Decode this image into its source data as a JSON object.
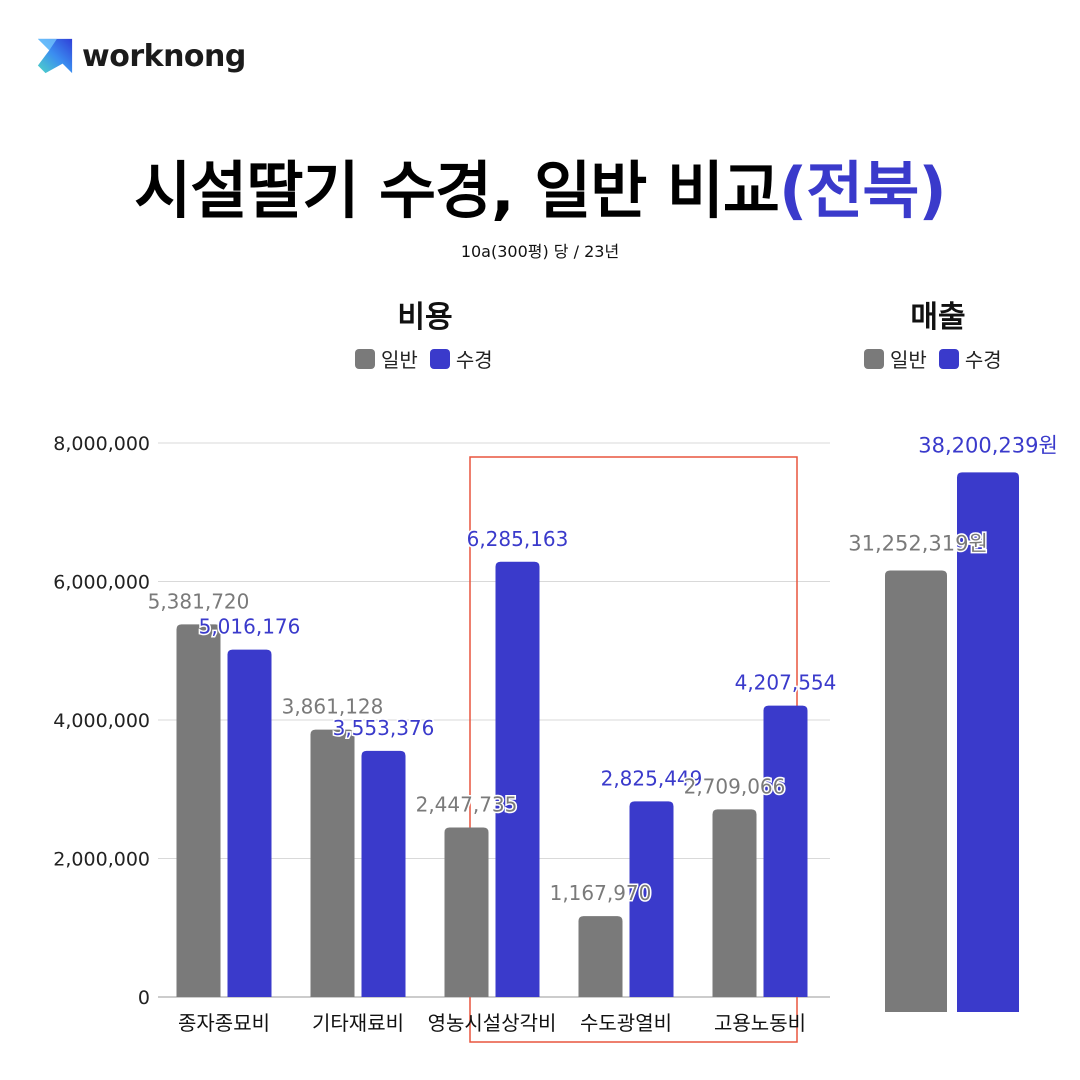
{
  "brand": {
    "name": "worknong",
    "icon": "arrow-logo-icon"
  },
  "header": {
    "title_main": "시설딸기 수경, 일반 비교",
    "title_accent": "(전북)",
    "subtitle": "10a(300평) 당 / 23년"
  },
  "legend": {
    "general": "일반",
    "hydroponic": "수경"
  },
  "colors": {
    "general": "#7a7a7a",
    "hydroponic": "#3a3acb",
    "highlight": "#e8553e",
    "grid": "#d9d9d9"
  },
  "chart_data": [
    {
      "type": "bar",
      "title": "비용",
      "categories": [
        "종자종묘비",
        "기타재료비",
        "영농시설상각비",
        "수도광열비",
        "고용노동비"
      ],
      "series": [
        {
          "name": "일반",
          "values": [
            5381720,
            3861128,
            2447735,
            1167970,
            2709066
          ],
          "labels": [
            "5,381,720",
            "3,861,128",
            "2,447,735",
            "1,167,970",
            "2,709,066"
          ]
        },
        {
          "name": "수경",
          "values": [
            5016176,
            3553376,
            6285163,
            2825449,
            4207554
          ],
          "labels": [
            "5,016,176",
            "3,553,376",
            "6,285,163",
            "2,825,449",
            "4,207,554"
          ]
        }
      ],
      "ylim": [
        0,
        8000000
      ],
      "yticks": [
        0,
        2000000,
        4000000,
        6000000,
        8000000
      ],
      "ytick_labels": [
        "0",
        "2,000,000",
        "4,000,000",
        "6,000,000",
        "8,000,000"
      ],
      "highlight_categories": [
        "영농시설상각비",
        "수도광열비",
        "고용노동비"
      ],
      "grid": true,
      "legend_position": "top-center"
    },
    {
      "type": "bar",
      "title": "매출",
      "categories": [
        ""
      ],
      "series": [
        {
          "name": "일반",
          "values": [
            31252319
          ],
          "labels": [
            "31,252,319원"
          ]
        },
        {
          "name": "수경",
          "values": [
            38200239
          ],
          "labels": [
            "38,200,239원"
          ]
        }
      ],
      "ylim": [
        0,
        40000000
      ],
      "grid": false,
      "legend_position": "top-center"
    }
  ]
}
